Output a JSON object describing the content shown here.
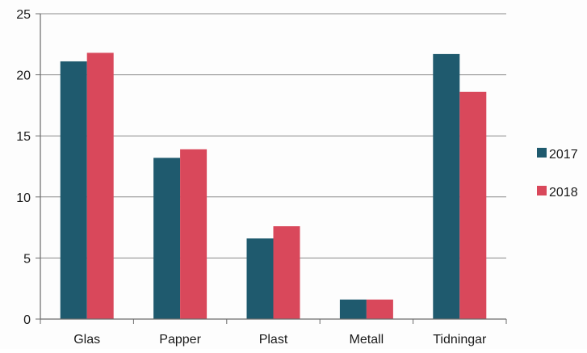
{
  "chart_data": {
    "type": "bar",
    "categories": [
      "Glas",
      "Papper",
      "Plast",
      "Metall",
      "Tidningar"
    ],
    "series": [
      {
        "name": "2017",
        "values": [
          21.1,
          13.2,
          6.6,
          1.6,
          21.7
        ]
      },
      {
        "name": "2018",
        "values": [
          21.8,
          13.9,
          7.6,
          1.6,
          18.6
        ]
      }
    ],
    "title": "",
    "xlabel": "",
    "ylabel": "",
    "ylim": [
      0,
      25
    ],
    "yticks": [
      "0",
      "5",
      "10",
      "15",
      "20",
      "25"
    ],
    "grid": true,
    "legend_position": "right",
    "colors": {
      "series": [
        "#1f5a6e",
        "#d9485b"
      ],
      "grid": "#8a8a8a",
      "axis": "#6b6b6b"
    }
  }
}
